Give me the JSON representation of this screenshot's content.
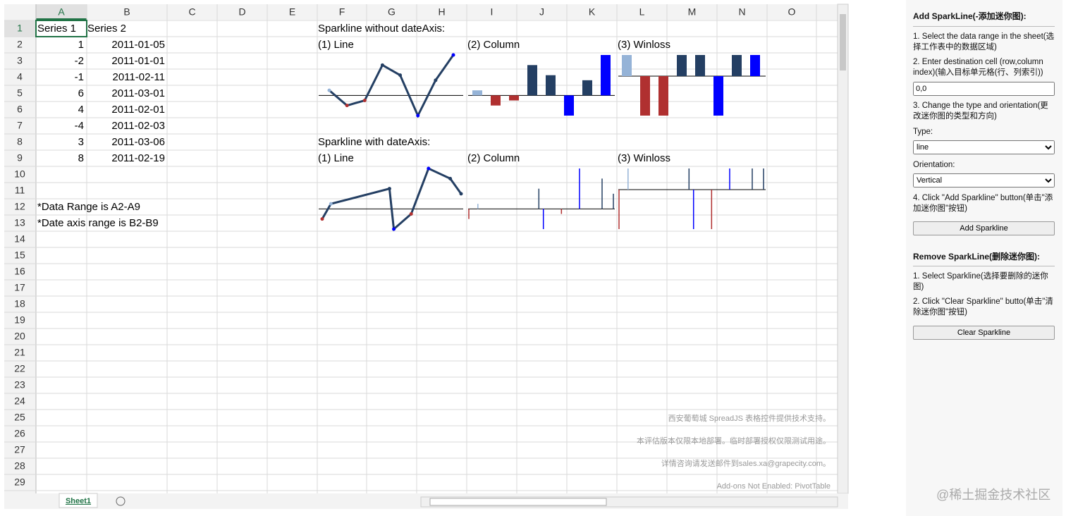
{
  "sheet": {
    "columns": [
      "A",
      "B",
      "C",
      "D",
      "E",
      "F",
      "G",
      "H",
      "I",
      "J",
      "K",
      "L",
      "M",
      "N",
      "O"
    ],
    "row_numbers": [
      1,
      2,
      3,
      4,
      5,
      6,
      7,
      8,
      9,
      10,
      11,
      12,
      13,
      14,
      15,
      16,
      17,
      18,
      19,
      20,
      21,
      22,
      23,
      24,
      25,
      26,
      27,
      28,
      29
    ],
    "table": {
      "header": [
        "Series 1",
        "Series 2"
      ],
      "rows": [
        [
          1,
          "2011-01-05"
        ],
        [
          -2,
          "2011-01-01"
        ],
        [
          -1,
          "2011-02-11"
        ],
        [
          6,
          "2011-03-01"
        ],
        [
          4,
          "2011-02-01"
        ],
        [
          -4,
          "2011-02-03"
        ],
        [
          3,
          "2011-03-06"
        ],
        [
          8,
          "2011-02-19"
        ]
      ]
    },
    "notes": [
      "*Data Range is A2-A9",
      "*Date axis range is B2-B9"
    ],
    "groups": [
      {
        "title": "Sparkline without dateAxis:",
        "labels": [
          "(1) Line",
          "(2) Column",
          "(3) Winloss"
        ]
      },
      {
        "title": "Sparkline with dateAxis:",
        "labels": [
          "(1) Line",
          "(2) Column",
          "(3) Winloss"
        ]
      }
    ],
    "watermark": [
      "西安葡萄城 SpreadJS 表格控件提供技术支持。",
      "本评估版本仅限本地部署。临时部署授权仅限测试用途。",
      "详情咨询请发送邮件到sales.xa@grapecity.com。",
      "Add-ons Not Enabled: PivotTable"
    ],
    "tab": "Sheet1"
  },
  "panel": {
    "add_title": "Add SparkLine(-添加迷你图):",
    "step1": "1. Select the data range in the sheet(选择工作表中的数据区域)",
    "step2": "2. Enter destination cell (row,column index)(输入目标单元格(行、列索引))",
    "input_value": "0,0",
    "step3": "3. Change the type and orientation(更改迷你图的类型和方向)",
    "type_label": "Type:",
    "type_value": "line",
    "orientation_label": "Orientation:",
    "orientation_value": "Vertical",
    "step4": "4. Click \"Add Sparkline\" button(单击\"添加迷你图\"按钮)",
    "add_button": "Add Sparkline",
    "remove_title": "Remove SparkLine(删除迷你图):",
    "remove_step1": "1. Select Sparkline(选择要删除的迷你图)",
    "remove_step2": "2. Click \"Clear Sparkline\" butto(单击\"清除迷你图\"按钮)",
    "clear_button": "Clear Sparkline"
  },
  "site_mark": "@稀土掘金技术社区"
}
